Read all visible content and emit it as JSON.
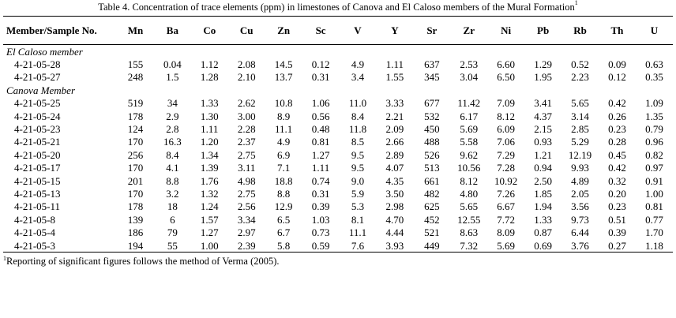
{
  "header": {
    "title": "Table 4. Concentration of trace elements (ppm) in limestones of Canova and El Caloso members of the Mural Formation",
    "title_note": "1"
  },
  "table": {
    "columns": [
      "Member/Sample No.",
      "Mn",
      "Ba",
      "Co",
      "Cu",
      "Zn",
      "Sc",
      "V",
      "Y",
      "Sr",
      "Zr",
      "Ni",
      "Pb",
      "Rb",
      "Th",
      "U"
    ],
    "groups": [
      {
        "label": "El Caloso member",
        "rows": [
          {
            "sample": "4-21-05-28",
            "values": [
              "155",
              "0.04",
              "1.12",
              "2.08",
              "14.5",
              "0.12",
              "4.9",
              "1.11",
              "637",
              "2.53",
              "6.60",
              "1.29",
              "0.52",
              "0.09",
              "0.63"
            ]
          },
          {
            "sample": "4-21-05-27",
            "values": [
              "248",
              "1.5",
              "1.28",
              "2.10",
              "13.7",
              "0.31",
              "3.4",
              "1.55",
              "345",
              "3.04",
              "6.50",
              "1.95",
              "2.23",
              "0.12",
              "0.35"
            ]
          }
        ]
      },
      {
        "label": "Canova Member",
        "rows": [
          {
            "sample": "4-21-05-25",
            "values": [
              "519",
              "34",
              "1.33",
              "2.62",
              "10.8",
              "1.06",
              "11.0",
              "3.33",
              "677",
              "11.42",
              "7.09",
              "3.41",
              "5.65",
              "0.42",
              "1.09"
            ]
          },
          {
            "sample": "4-21-05-24",
            "values": [
              "178",
              "2.9",
              "1.30",
              "3.00",
              "8.9",
              "0.56",
              "8.4",
              "2.21",
              "532",
              "6.17",
              "8.12",
              "4.37",
              "3.14",
              "0.26",
              "1.35"
            ]
          },
          {
            "sample": "4-21-05-23",
            "values": [
              "124",
              "2.8",
              "1.11",
              "2.28",
              "11.1",
              "0.48",
              "11.8",
              "2.09",
              "450",
              "5.69",
              "6.09",
              "2.15",
              "2.85",
              "0.23",
              "0.79"
            ]
          },
          {
            "sample": "4-21-05-21",
            "values": [
              "170",
              "16.3",
              "1.20",
              "2.37",
              "4.9",
              "0.81",
              "8.5",
              "2.66",
              "488",
              "5.58",
              "7.06",
              "0.93",
              "5.29",
              "0.28",
              "0.96"
            ]
          },
          {
            "sample": "4-21-05-20",
            "values": [
              "256",
              "8.4",
              "1.34",
              "2.75",
              "6.9",
              "1.27",
              "9.5",
              "2.89",
              "526",
              "9.62",
              "7.29",
              "1.21",
              "12.19",
              "0.45",
              "0.82"
            ]
          },
          {
            "sample": "4-21-05-17",
            "values": [
              "170",
              "4.1",
              "1.39",
              "3.11",
              "7.1",
              "1.11",
              "9.5",
              "4.07",
              "513",
              "10.56",
              "7.28",
              "0.94",
              "9.93",
              "0.42",
              "0.97"
            ]
          },
          {
            "sample": "4-21-05-15",
            "values": [
              "201",
              "8.8",
              "1.76",
              "4.98",
              "18.8",
              "0.74",
              "9.0",
              "4.35",
              "661",
              "8.12",
              "10.92",
              "2.50",
              "4.89",
              "0.32",
              "0.91"
            ]
          },
          {
            "sample": "4-21-05-13",
            "values": [
              "170",
              "3.2",
              "1.32",
              "2.75",
              "8.8",
              "0.31",
              "5.9",
              "3.50",
              "482",
              "4.80",
              "7.26",
              "1.85",
              "2.05",
              "0.20",
              "1.00"
            ]
          },
          {
            "sample": "4-21-05-11",
            "values": [
              "178",
              "18",
              "1.24",
              "2.56",
              "12.9",
              "0.39",
              "5.3",
              "2.98",
              "625",
              "5.65",
              "6.67",
              "1.94",
              "3.56",
              "0.23",
              "0.81"
            ]
          },
          {
            "sample": "4-21-05-8",
            "values": [
              "139",
              "6",
              "1.57",
              "3.34",
              "6.5",
              "1.03",
              "8.1",
              "4.70",
              "452",
              "12.55",
              "7.72",
              "1.33",
              "9.73",
              "0.51",
              "0.77"
            ]
          },
          {
            "sample": "4-21-05-4",
            "values": [
              "186",
              "79",
              "1.27",
              "2.97",
              "6.7",
              "0.73",
              "11.1",
              "4.44",
              "521",
              "8.63",
              "8.09",
              "0.87",
              "6.44",
              "0.39",
              "1.70"
            ]
          },
          {
            "sample": "4-21-05-3",
            "values": [
              "194",
              "55",
              "1.00",
              "2.39",
              "5.8",
              "0.59",
              "7.6",
              "3.93",
              "449",
              "7.32",
              "5.69",
              "0.69",
              "3.76",
              "0.27",
              "1.18"
            ]
          }
        ]
      }
    ]
  },
  "footnote": {
    "marker": "1",
    "text": "Reporting of significant figures follows the method of Verma (2005)."
  }
}
